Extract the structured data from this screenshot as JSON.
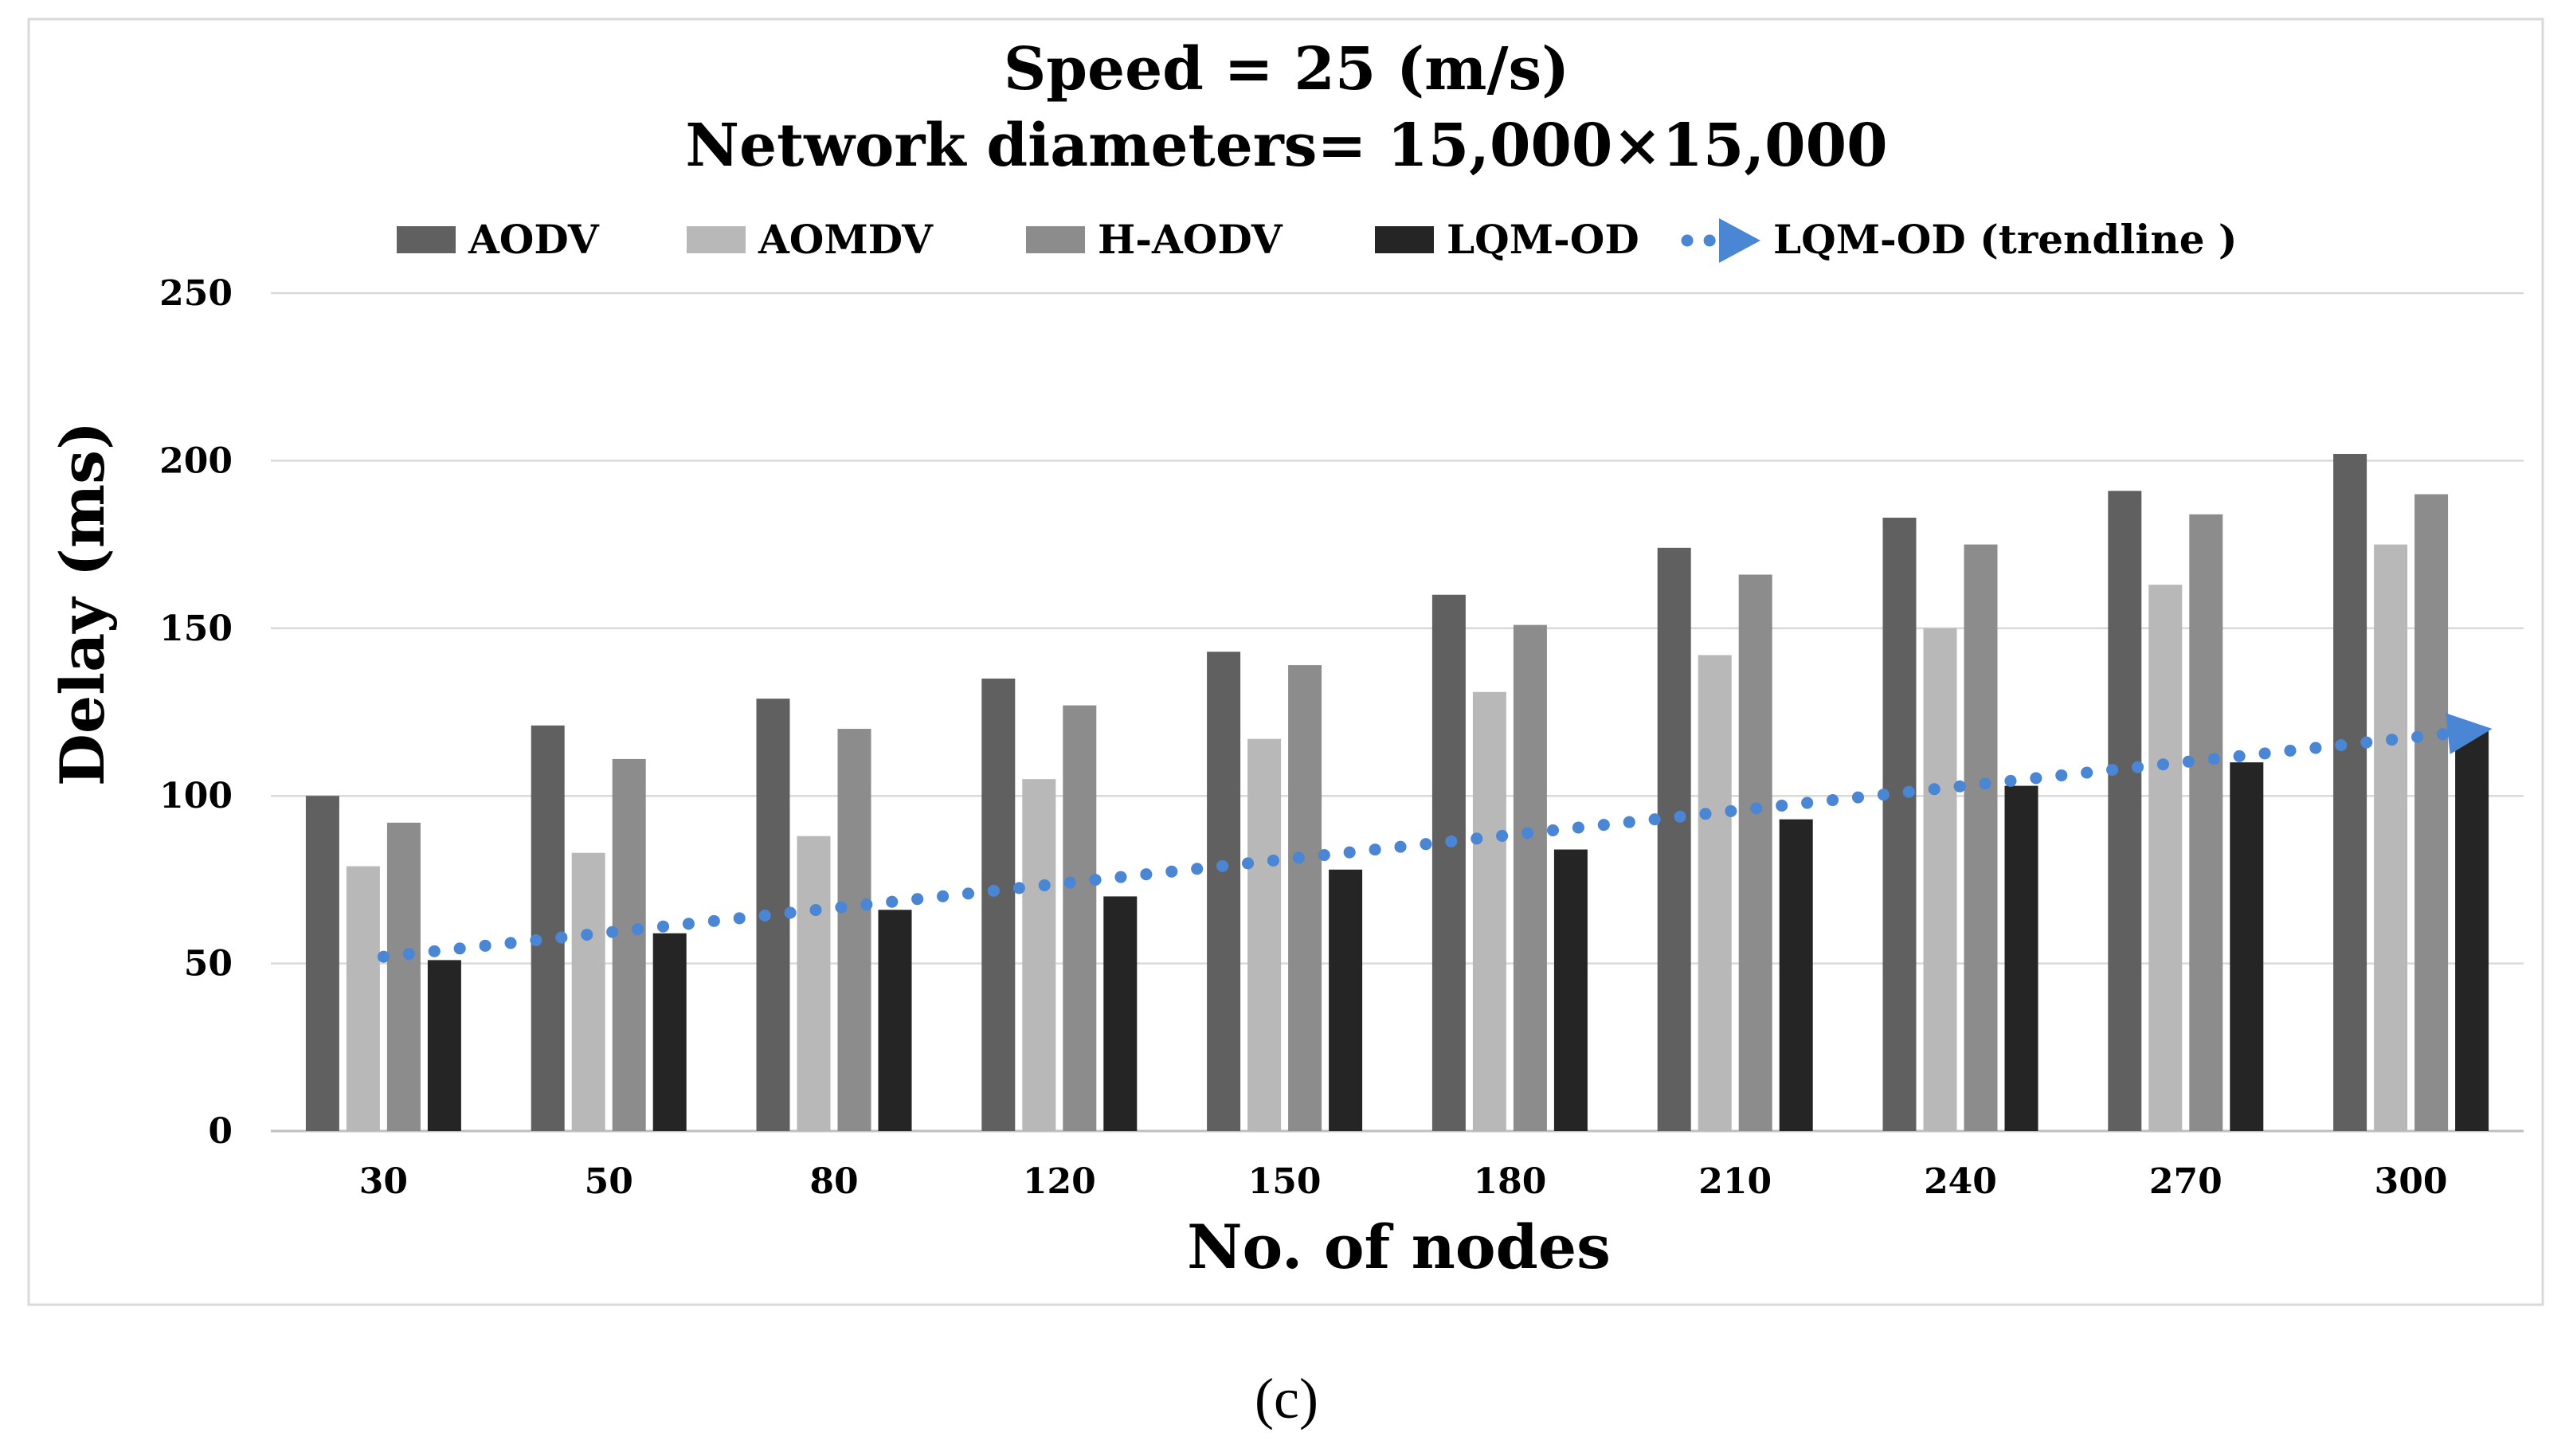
{
  "chart_data": {
    "type": "bar",
    "title_line1": "Speed = 25 (m/s)",
    "title_line2": "Network diameters= 15,000×15,000",
    "xlabel": "No. of nodes",
    "ylabel": "Delay (ms)",
    "ylim": [
      0,
      250
    ],
    "yticks": [
      "0",
      "50",
      "100",
      "150",
      "200",
      "250"
    ],
    "categories": [
      "30",
      "50",
      "80",
      "120",
      "150",
      "180",
      "210",
      "240",
      "270",
      "300"
    ],
    "series": [
      {
        "name": "AODV",
        "color": "#606060",
        "values": [
          100,
          121,
          129,
          135,
          143,
          160,
          174,
          183,
          191,
          202
        ]
      },
      {
        "name": "AOMDV",
        "color": "#b8b8b8",
        "values": [
          79,
          83,
          88,
          105,
          117,
          131,
          142,
          150,
          163,
          175
        ]
      },
      {
        "name": "H-AODV",
        "color": "#8c8c8c",
        "values": [
          92,
          111,
          120,
          127,
          139,
          151,
          166,
          175,
          184,
          190
        ]
      },
      {
        "name": "LQM-OD",
        "color": "#252525",
        "values": [
          51,
          59,
          66,
          70,
          78,
          84,
          93,
          103,
          110,
          120
        ]
      }
    ],
    "trendline": {
      "name": "LQM-OD (trendline )",
      "color": "#4a86d4",
      "start": 52,
      "end": 120
    },
    "grid": true,
    "legend": "top-center",
    "caption": "(c)"
  }
}
